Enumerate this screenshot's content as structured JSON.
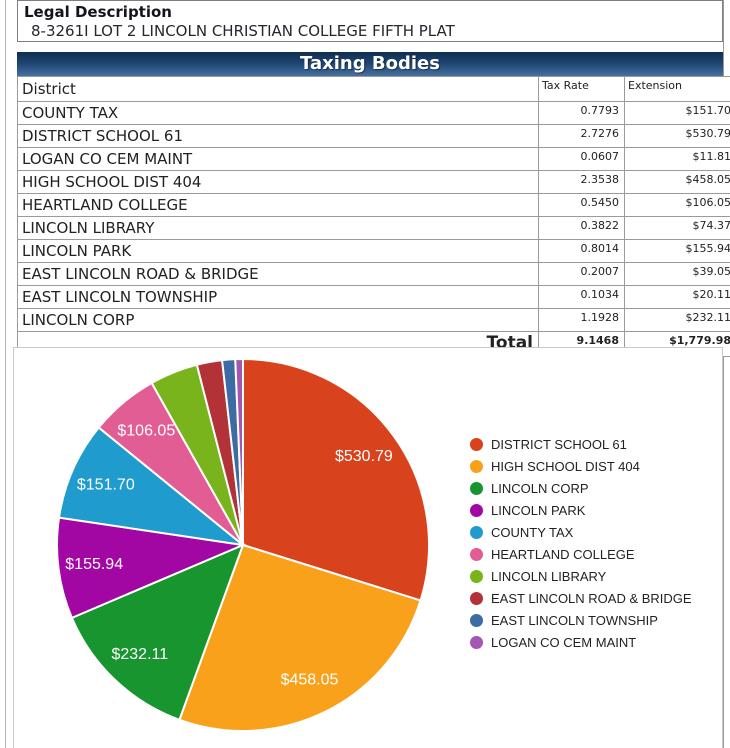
{
  "legal": {
    "title": "Legal Description",
    "value": "8-3261I LOT 2 LINCOLN CHRISTIAN COLLEGE FIFTH PLAT"
  },
  "table": {
    "title": "Taxing Bodies",
    "columns": [
      "District",
      "Tax Rate",
      "Extension"
    ],
    "rows": [
      [
        "COUNTY TAX",
        "0.7793",
        "$151.70"
      ],
      [
        "DISTRICT SCHOOL 61",
        "2.7276",
        "$530.79"
      ],
      [
        "LOGAN CO CEM MAINT",
        "0.0607",
        "$11.81"
      ],
      [
        "HIGH SCHOOL DIST 404",
        "2.3538",
        "$458.05"
      ],
      [
        "HEARTLAND COLLEGE",
        "0.5450",
        "$106.05"
      ],
      [
        "LINCOLN LIBRARY",
        "0.3822",
        "$74.37"
      ],
      [
        "LINCOLN PARK",
        "0.8014",
        "$155.94"
      ],
      [
        "EAST LINCOLN ROAD & BRIDGE",
        "0.2007",
        "$39.05"
      ],
      [
        "EAST LINCOLN TOWNSHIP",
        "0.1034",
        "$20.11"
      ],
      [
        "LINCOLN CORP",
        "1.1928",
        "$232.11"
      ]
    ],
    "total": {
      "label": "Total",
      "tax_rate": "9.1468",
      "extension": "$1,779.98"
    }
  },
  "chart_data": {
    "type": "pie",
    "title": "",
    "total": 1779.98,
    "start_angle_deg": -90,
    "direction": "clockwise",
    "legend_position": "right",
    "slice_stroke": "#ffffff",
    "label_color": "#ffffff",
    "series": [
      {
        "name": "DISTRICT SCHOOL 61",
        "value": 530.79,
        "label": "$530.79",
        "color": "#d8431d"
      },
      {
        "name": "HIGH SCHOOL DIST 404",
        "value": 458.05,
        "label": "$458.05",
        "color": "#f9a11b"
      },
      {
        "name": "LINCOLN CORP",
        "value": 232.11,
        "label": "$232.11",
        "color": "#18952f"
      },
      {
        "name": "LINCOLN PARK",
        "value": 155.94,
        "label": "$155.94",
        "color": "#a307a3"
      },
      {
        "name": "COUNTY TAX",
        "value": 151.7,
        "label": "$151.70",
        "color": "#1f9ccd"
      },
      {
        "name": "HEARTLAND COLLEGE",
        "value": 106.05,
        "label": "$106.05",
        "color": "#e25d93"
      },
      {
        "name": "LINCOLN LIBRARY",
        "value": 74.37,
        "label": "",
        "color": "#7ab41d"
      },
      {
        "name": "EAST LINCOLN ROAD & BRIDGE",
        "value": 39.05,
        "label": "",
        "color": "#b23238"
      },
      {
        "name": "EAST LINCOLN TOWNSHIP",
        "value": 20.11,
        "label": "",
        "color": "#3d6ba3"
      },
      {
        "name": "LOGAN CO CEM MAINT",
        "value": 11.81,
        "label": "",
        "color": "#a357b0"
      }
    ]
  }
}
